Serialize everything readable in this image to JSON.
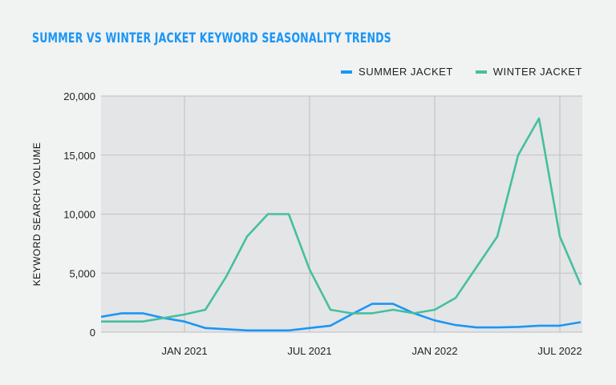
{
  "chart_data": {
    "type": "line",
    "title": "SUMMER VS WINTER JACKET KEYWORD SEASONALITY TRENDS",
    "xlabel": "",
    "ylabel": "KEYWORD SEARCH VOLUME",
    "ylim": [
      0,
      20000
    ],
    "yticks": [
      0,
      5000,
      10000,
      15000,
      20000
    ],
    "ytick_labels": [
      "0",
      "5,000",
      "10,000",
      "15,000",
      "20,000"
    ],
    "x": [
      "2020-09",
      "2020-10",
      "2020-11",
      "2020-12",
      "2021-01",
      "2021-02",
      "2021-03",
      "2021-04",
      "2021-05",
      "2021-06",
      "2021-07",
      "2021-08",
      "2021-09",
      "2021-10",
      "2021-11",
      "2021-12",
      "2022-01",
      "2022-02",
      "2022-03",
      "2022-04",
      "2022-05",
      "2022-06",
      "2022-07",
      "2022-08"
    ],
    "xticks": [
      "2021-01",
      "2021-07",
      "2022-01",
      "2022-07"
    ],
    "xtick_labels": [
      "JAN 2021",
      "JUL 2021",
      "JAN 2022",
      "JUL 2022"
    ],
    "grid": true,
    "legend_position": "top-right",
    "series": [
      {
        "name": "SUMMER JACKET",
        "color": "#1a96f5",
        "values": [
          1300,
          1600,
          1600,
          1200,
          900,
          350,
          250,
          150,
          150,
          150,
          350,
          550,
          1500,
          2400,
          2400,
          1600,
          1000,
          600,
          400,
          400,
          450,
          550,
          550,
          850
        ]
      },
      {
        "name": "WINTER JACKET",
        "color": "#45bfa0",
        "values": [
          900,
          900,
          900,
          1200,
          1500,
          1900,
          4700,
          8100,
          10000,
          10000,
          5300,
          1900,
          1600,
          1600,
          1900,
          1600,
          1900,
          2900,
          5500,
          8100,
          15000,
          18100,
          8100,
          4000
        ]
      }
    ]
  }
}
